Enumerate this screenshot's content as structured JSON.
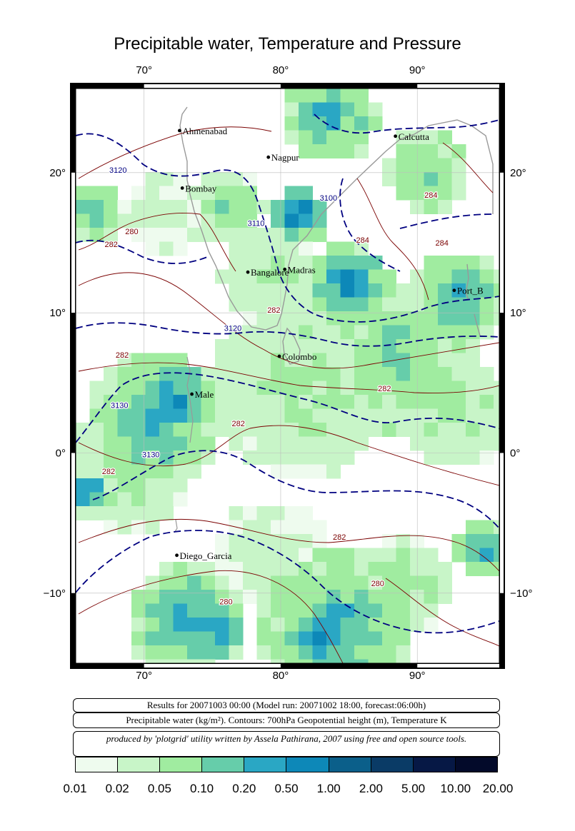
{
  "title": "Precipitable water, Temperature and Pressure",
  "axes": {
    "lon_ticks": [
      {
        "value": 70,
        "label": "70°"
      },
      {
        "value": 80,
        "label": "80°"
      },
      {
        "value": 90,
        "label": "90°"
      }
    ],
    "lat_ticks": [
      {
        "value": 20,
        "label": "20°"
      },
      {
        "value": 10,
        "label": "10°"
      },
      {
        "value": 0,
        "label": "0°"
      },
      {
        "value": -10,
        "label": "−10°"
      }
    ],
    "lon_range": [
      65,
      96
    ],
    "lat_range": [
      -15,
      26
    ]
  },
  "cities": [
    {
      "name": "Ahmenabad",
      "lon": 72.6,
      "lat": 23.0
    },
    {
      "name": "Nagpur",
      "lon": 79.1,
      "lat": 21.1
    },
    {
      "name": "Calcutta",
      "lon": 88.4,
      "lat": 22.6
    },
    {
      "name": "Bombay",
      "lon": 72.8,
      "lat": 18.9
    },
    {
      "name": "Bangalore",
      "lon": 77.6,
      "lat": 12.9
    },
    {
      "name": "Madras",
      "lon": 80.3,
      "lat": 13.1
    },
    {
      "name": "Port_B",
      "lon": 92.7,
      "lat": 11.6
    },
    {
      "name": "Colombo",
      "lon": 79.9,
      "lat": 6.9
    },
    {
      "name": "Male",
      "lon": 73.5,
      "lat": 4.2
    },
    {
      "name": "Diego_Garcia",
      "lon": 72.4,
      "lat": -7.3
    }
  ],
  "contour_labels": [
    {
      "text": "3120",
      "lon": 68.1,
      "lat": 20.0,
      "kind": "height"
    },
    {
      "text": "3110",
      "lon": 78.2,
      "lat": 16.2,
      "kind": "height"
    },
    {
      "text": "3100",
      "lon": 83.5,
      "lat": 18.0,
      "kind": "height"
    },
    {
      "text": "3120",
      "lon": 76.5,
      "lat": 8.7,
      "kind": "height"
    },
    {
      "text": "3130",
      "lon": 68.2,
      "lat": 3.2,
      "kind": "height"
    },
    {
      "text": "3130",
      "lon": 70.5,
      "lat": -0.3,
      "kind": "height"
    },
    {
      "text": "284",
      "lon": 91.0,
      "lat": 18.2,
      "kind": "temp"
    },
    {
      "text": "284",
      "lon": 91.8,
      "lat": 14.8,
      "kind": "temp"
    },
    {
      "text": "284",
      "lon": 86.0,
      "lat": 15.0,
      "kind": "temp"
    },
    {
      "text": "280",
      "lon": 69.1,
      "lat": 15.6,
      "kind": "temp"
    },
    {
      "text": "282",
      "lon": 67.6,
      "lat": 14.7,
      "kind": "temp"
    },
    {
      "text": "282",
      "lon": 79.5,
      "lat": 10.0,
      "kind": "temp"
    },
    {
      "text": "282",
      "lon": 68.4,
      "lat": 6.8,
      "kind": "temp"
    },
    {
      "text": "282",
      "lon": 87.6,
      "lat": 4.4,
      "kind": "temp"
    },
    {
      "text": "282",
      "lon": 76.9,
      "lat": 1.9,
      "kind": "temp"
    },
    {
      "text": "282",
      "lon": 67.4,
      "lat": -1.5,
      "kind": "temp"
    },
    {
      "text": "282",
      "lon": 84.3,
      "lat": -6.2,
      "kind": "temp"
    },
    {
      "text": "280",
      "lon": 87.1,
      "lat": -9.5,
      "kind": "temp"
    },
    {
      "text": "280",
      "lon": 76.0,
      "lat": -10.8,
      "kind": "temp"
    }
  ],
  "info": {
    "results": "Results for 20071003 00:00 (Model run: 20071002 18:00, forecast:06:00h)",
    "legend_text": "Precipitable water (kg/m²).  Contours: 700hPa Geopotential height (m), Temperature K",
    "credit": "produced by 'plotgrid' utility written by Assela Pathirana, 2007 using free and open source tools."
  },
  "colorbar": {
    "labels": [
      "0.01",
      "0.02",
      "0.05",
      "0.10",
      "0.20",
      "0.50",
      "1.00",
      "2.00",
      "5.00",
      "10.00",
      "20.00"
    ],
    "colors": [
      "#eefbee",
      "#c8f5c8",
      "#a0eca0",
      "#66cdaa",
      "#2aa7c4",
      "#0d88b8",
      "#0b5f8a",
      "#0a3b66",
      "#061845",
      "#030a2a",
      "#000010"
    ]
  },
  "colors": {
    "height_contour": "#000080",
    "temp_contour": "#7a0000",
    "coast": "#999999",
    "grid": "#bbbbbb"
  }
}
